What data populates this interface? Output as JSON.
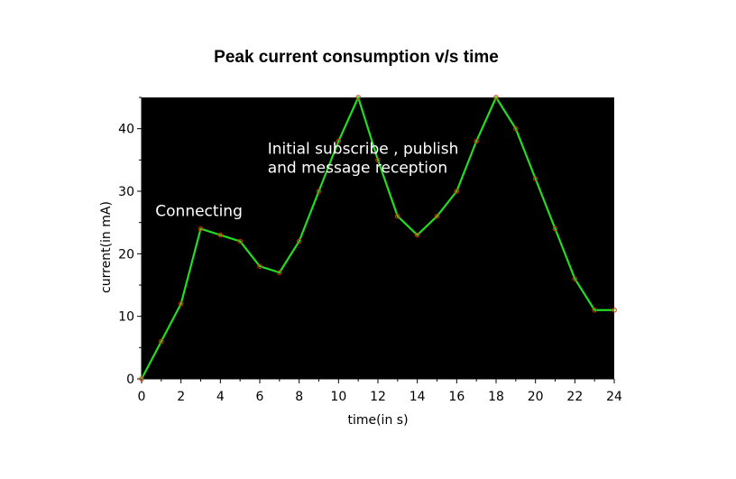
{
  "chart_data": {
    "type": "line",
    "title": "Peak current consumption v/s time",
    "xlabel": "time(in s)",
    "ylabel": "current(in mA)",
    "xlim": [
      0,
      24
    ],
    "ylim": [
      0,
      45
    ],
    "xticks": [
      0,
      2,
      4,
      6,
      8,
      10,
      12,
      14,
      16,
      18,
      20,
      22,
      24
    ],
    "yticks": [
      0,
      10,
      20,
      30,
      40
    ],
    "grid": false,
    "background_color": "#000000",
    "line_color": "#22dd22",
    "marker_color": "#cc3300",
    "series": [
      {
        "x": [
          0,
          1,
          2,
          3,
          4,
          5,
          6,
          7,
          8,
          9,
          10,
          11,
          12,
          13,
          14,
          15,
          16,
          17,
          18,
          19,
          20,
          21,
          22,
          23,
          24
        ],
        "y": [
          0,
          6,
          12,
          24,
          23,
          22,
          18,
          17,
          22,
          30,
          38,
          45,
          35,
          26,
          23,
          26,
          30,
          38,
          45,
          40,
          32,
          24,
          16,
          11,
          11
        ]
      }
    ],
    "annotations": [
      {
        "lines": [
          "Connecting"
        ],
        "x": 0.7,
        "y": 26.0
      },
      {
        "lines": [
          "Initial subscribe , publish",
          "and message reception"
        ],
        "x": 6.4,
        "y": 36.0
      }
    ]
  }
}
